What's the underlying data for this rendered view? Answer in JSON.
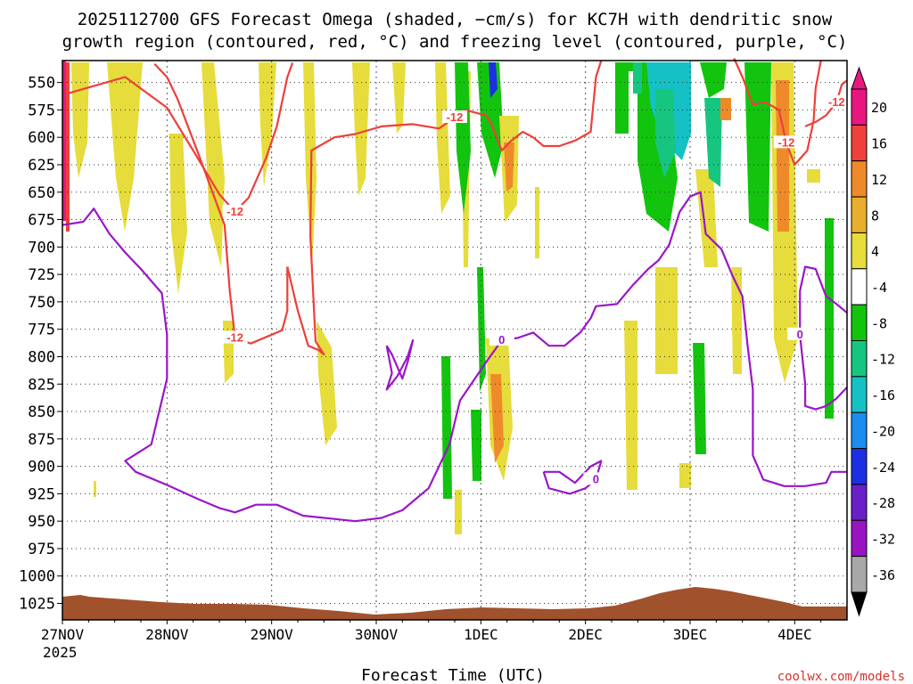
{
  "chart_data": {
    "type": "heatmap",
    "title_line1": "2025112700 GFS Forecast Omega (shaded, −cm/s) for KC7H with dendritic snow",
    "title_line2": "growth region (contoured, red, °C) and freezing level (contoured, purple, °C)",
    "xlabel": "Forecast Time (UTC)",
    "credit": "coolwx.com/models",
    "x_ticks": [
      "27NOV",
      "28NOV",
      "29NOV",
      "30NOV",
      "1DEC",
      "2DEC",
      "3DEC",
      "4DEC"
    ],
    "x_year": "2025",
    "x_range_days": [
      0,
      7.5
    ],
    "y_ticks": [
      "550",
      "575",
      "600",
      "625",
      "650",
      "675",
      "700",
      "725",
      "750",
      "775",
      "800",
      "825",
      "850",
      "875",
      "900",
      "925",
      "950",
      "975",
      "1000",
      "1025"
    ],
    "y_range_hpa": [
      530,
      1040
    ],
    "colorbar_ticks": [
      "20",
      "16",
      "12",
      "8",
      "4",
      "-4",
      "-8",
      "-12",
      "-16",
      "-20",
      "-24",
      "-28",
      "-32",
      "-36"
    ],
    "colorbar_colors": [
      "#e8177f",
      "#f0403a",
      "#ef8a2a",
      "#e9ae2e",
      "#e6dc3b",
      "#ffffff",
      "#12c40e",
      "#16c680",
      "#15c1c4",
      "#1b8cf0",
      "#1d2fe3",
      "#6b1fc8",
      "#9a13c3",
      "#a8a8a8"
    ],
    "series": [
      {
        "name": "dendritic -12C (upper, left)",
        "color": "#ee3f3a",
        "label": "-12",
        "points": [
          [
            0.05,
            560
          ],
          [
            0.6,
            545
          ],
          [
            1.0,
            573
          ],
          [
            1.25,
            612
          ],
          [
            1.5,
            652
          ],
          [
            1.65,
            668
          ],
          [
            1.78,
            655
          ],
          [
            1.95,
            618
          ],
          [
            2.05,
            590
          ],
          [
            2.15,
            545
          ],
          [
            2.2,
            532
          ]
        ]
      },
      {
        "name": "dendritic -12C (lower, left)",
        "color": "#ee3f3a",
        "label": "-12",
        "points": [
          [
            0.88,
            533
          ],
          [
            1.0,
            545
          ],
          [
            1.1,
            565
          ],
          [
            1.3,
            615
          ],
          [
            1.55,
            680
          ],
          [
            1.6,
            740
          ],
          [
            1.65,
            783
          ],
          [
            1.8,
            788
          ],
          [
            2.0,
            780
          ],
          [
            2.1,
            776
          ],
          [
            2.15,
            758
          ],
          [
            2.15,
            718
          ]
        ]
      },
      {
        "name": "dendritic -12C (middle)",
        "color": "#ee3f3a",
        "label": "-12",
        "points": [
          [
            2.15,
            718
          ],
          [
            2.25,
            758
          ],
          [
            2.35,
            790
          ],
          [
            2.45,
            794
          ],
          [
            2.5,
            798
          ],
          [
            2.42,
            786
          ],
          [
            2.37,
            690
          ],
          [
            2.38,
            612
          ],
          [
            2.6,
            600
          ],
          [
            2.8,
            597
          ],
          [
            3.05,
            590
          ],
          [
            3.35,
            588
          ],
          [
            3.6,
            592
          ],
          [
            3.75,
            582
          ],
          [
            3.85,
            575
          ],
          [
            4.05,
            580
          ],
          [
            4.1,
            588
          ],
          [
            4.2,
            612
          ],
          [
            4.28,
            604
          ],
          [
            4.4,
            595
          ],
          [
            4.5,
            600
          ],
          [
            4.6,
            608
          ],
          [
            4.75,
            608
          ],
          [
            4.9,
            603
          ],
          [
            5.05,
            595
          ],
          [
            5.1,
            545
          ],
          [
            5.15,
            530
          ]
        ]
      },
      {
        "name": "dendritic -12C (right)",
        "color": "#ee3f3a",
        "label": "-12",
        "points": [
          [
            6.42,
            528
          ],
          [
            6.5,
            545
          ],
          [
            6.6,
            570
          ],
          [
            6.72,
            568
          ],
          [
            6.85,
            575
          ],
          [
            6.92,
            605
          ],
          [
            7.0,
            625
          ],
          [
            7.12,
            612
          ],
          [
            7.18,
            585
          ],
          [
            7.2,
            555
          ],
          [
            7.25,
            530
          ]
        ]
      },
      {
        "name": "dendritic -12C (far right)",
        "color": "#ee3f3a",
        "label": "-12",
        "points": [
          [
            7.1,
            590
          ],
          [
            7.2,
            586
          ],
          [
            7.3,
            580
          ],
          [
            7.4,
            568
          ],
          [
            7.45,
            552
          ],
          [
            7.5,
            548
          ]
        ]
      },
      {
        "name": "freezing level 0C (main)",
        "color": "#9a16c9",
        "label": "0",
        "points": [
          [
            0.0,
            680
          ],
          [
            0.2,
            677
          ],
          [
            0.3,
            665
          ],
          [
            0.45,
            688
          ],
          [
            0.6,
            705
          ],
          [
            0.75,
            720
          ],
          [
            0.95,
            742
          ],
          [
            1.0,
            780
          ],
          [
            1.0,
            820
          ],
          [
            0.9,
            860
          ],
          [
            0.85,
            880
          ],
          [
            0.6,
            895
          ],
          [
            0.7,
            905
          ],
          [
            1.0,
            917
          ],
          [
            1.3,
            930
          ],
          [
            1.5,
            938
          ],
          [
            1.65,
            942
          ],
          [
            1.85,
            935
          ],
          [
            2.05,
            935
          ],
          [
            2.3,
            945
          ],
          [
            2.6,
            948
          ],
          [
            2.8,
            950
          ],
          [
            3.05,
            947
          ],
          [
            3.25,
            940
          ],
          [
            3.5,
            920
          ],
          [
            3.7,
            880
          ],
          [
            3.8,
            840
          ],
          [
            4.05,
            805
          ],
          [
            4.2,
            785
          ],
          [
            4.35,
            783
          ],
          [
            4.5,
            778
          ],
          [
            4.65,
            790
          ],
          [
            4.8,
            790
          ],
          [
            4.95,
            778
          ],
          [
            5.05,
            765
          ],
          [
            5.1,
            754
          ],
          [
            5.3,
            752
          ],
          [
            5.45,
            735
          ],
          [
            5.6,
            720
          ],
          [
            5.7,
            712
          ],
          [
            5.8,
            698
          ],
          [
            5.9,
            668
          ],
          [
            6.0,
            654
          ],
          [
            6.1,
            650
          ],
          [
            6.15,
            688
          ],
          [
            6.3,
            702
          ],
          [
            6.4,
            725
          ],
          [
            6.5,
            745
          ],
          [
            6.55,
            790
          ],
          [
            6.6,
            830
          ],
          [
            6.6,
            890
          ],
          [
            6.7,
            912
          ],
          [
            6.9,
            918
          ],
          [
            7.1,
            918
          ],
          [
            7.3,
            915
          ],
          [
            7.35,
            905
          ],
          [
            7.5,
            905
          ]
        ]
      },
      {
        "name": "freezing level 0C (right loop)",
        "color": "#9a16c9",
        "label": "0",
        "points": [
          [
            7.5,
            760
          ],
          [
            7.4,
            752
          ],
          [
            7.3,
            745
          ],
          [
            7.2,
            720
          ],
          [
            7.1,
            718
          ],
          [
            7.05,
            740
          ],
          [
            7.05,
            780
          ],
          [
            7.1,
            825
          ],
          [
            7.1,
            845
          ],
          [
            7.2,
            848
          ],
          [
            7.3,
            845
          ],
          [
            7.4,
            838
          ],
          [
            7.5,
            828
          ]
        ]
      },
      {
        "name": "freezing level 0C (30NOV loop)",
        "color": "#9a16c9",
        "label": "",
        "points": [
          [
            3.1,
            790
          ],
          [
            3.15,
            815
          ],
          [
            3.1,
            830
          ],
          [
            3.2,
            818
          ],
          [
            3.3,
            800
          ],
          [
            3.35,
            785
          ],
          [
            3.3,
            805
          ],
          [
            3.25,
            820
          ],
          [
            3.15,
            798
          ],
          [
            3.1,
            790
          ]
        ]
      },
      {
        "name": "freezing level 0C (2DEC loop)",
        "color": "#9a16c9",
        "label": "0",
        "points": [
          [
            4.6,
            905
          ],
          [
            4.75,
            905
          ],
          [
            4.9,
            915
          ],
          [
            5.05,
            900
          ],
          [
            5.15,
            895
          ],
          [
            5.1,
            912
          ],
          [
            5.0,
            920
          ],
          [
            4.85,
            925
          ],
          [
            4.65,
            920
          ],
          [
            4.6,
            905
          ]
        ]
      }
    ]
  }
}
